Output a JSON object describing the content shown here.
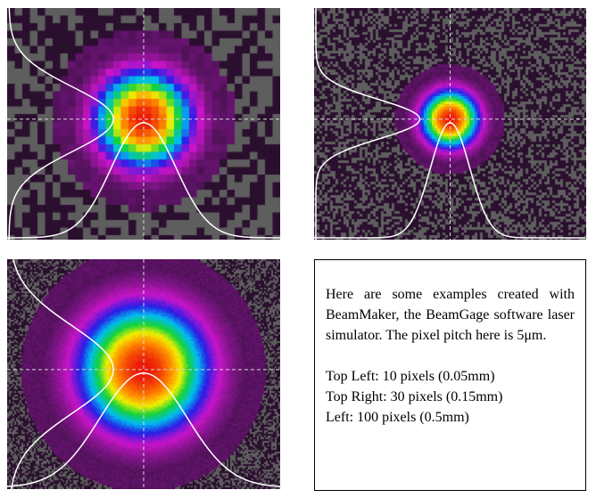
{
  "panels": [
    {
      "id": "tl",
      "beam_pixels": 10
    },
    {
      "id": "tr",
      "beam_pixels": 30
    },
    {
      "id": "bl",
      "beam_pixels": 100
    }
  ],
  "text": {
    "intro": "Here are some examples created with BeamMaker, the BeamGage software laser simulator.  The pixel pitch here is 5μm.",
    "items": [
      "Top Left: 10 pixels (0.05mm)",
      "Top Right: 30 pixels (0.15mm)",
      "Left: 100 pixels (0.5mm)"
    ]
  },
  "colors": {
    "background_dark": "#2a0f2e",
    "noise": "#5e5e5e",
    "profile_curve": "#ffffff",
    "crosshair": "#d8d8d8"
  }
}
